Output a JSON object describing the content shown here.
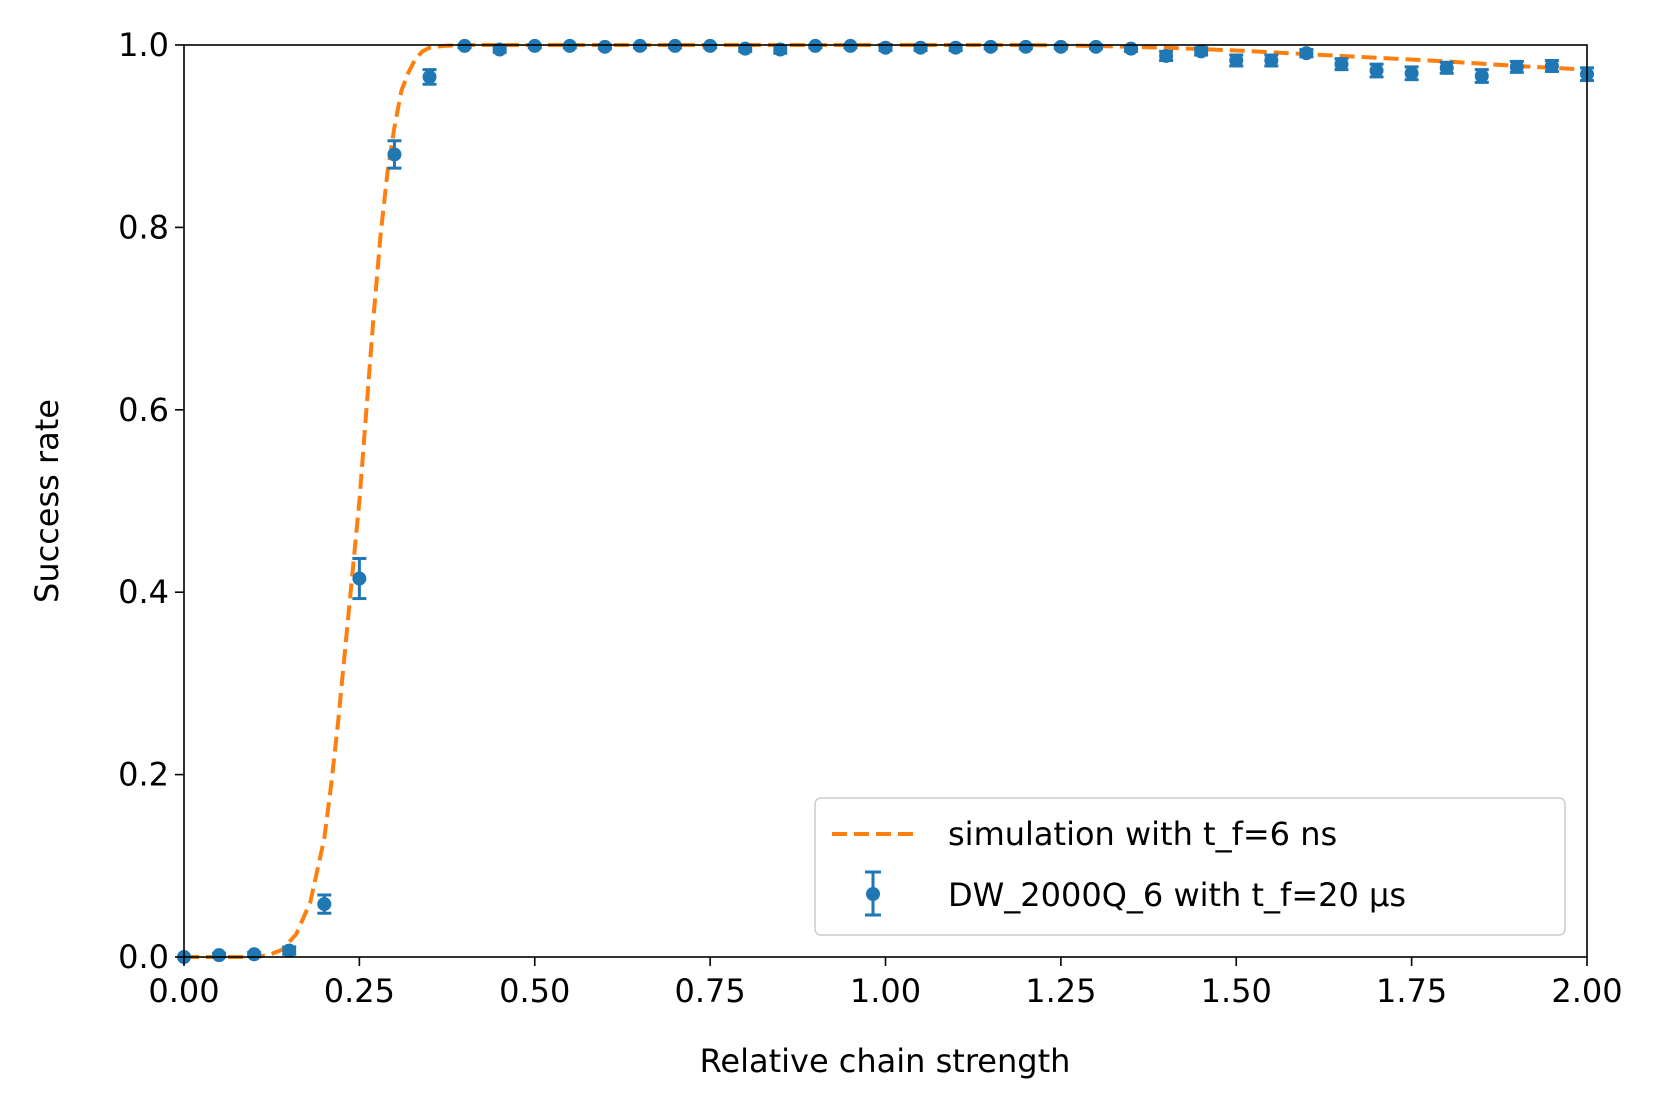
{
  "chart_data": {
    "type": "scatter",
    "title": "",
    "xlabel": "Relative chain strength",
    "ylabel": "Success rate",
    "xlim": [
      0.0,
      2.0
    ],
    "ylim": [
      0.0,
      1.0
    ],
    "grid": false,
    "legend_position": "lower-right",
    "x_ticks": [
      "0.00",
      "0.25",
      "0.50",
      "0.75",
      "1.00",
      "1.25",
      "1.50",
      "1.75",
      "2.00"
    ],
    "x_tick_values": [
      0.0,
      0.25,
      0.5,
      0.75,
      1.0,
      1.25,
      1.5,
      1.75,
      2.0
    ],
    "y_ticks": [
      "0.0",
      "0.2",
      "0.4",
      "0.6",
      "0.8",
      "1.0"
    ],
    "y_tick_values": [
      0.0,
      0.2,
      0.4,
      0.6,
      0.8,
      1.0
    ],
    "series": [
      {
        "name": "simulation with t_f=6 ns",
        "style": "dashed-line",
        "color": "#ff7f0e",
        "x": [
          0.0,
          0.02,
          0.04,
          0.06,
          0.08,
          0.1,
          0.12,
          0.14,
          0.16,
          0.18,
          0.2,
          0.21,
          0.22,
          0.23,
          0.24,
          0.25,
          0.26,
          0.27,
          0.28,
          0.29,
          0.3,
          0.31,
          0.32,
          0.33,
          0.34,
          0.35,
          0.37,
          0.4,
          0.45,
          0.5,
          0.6,
          0.7,
          0.8,
          0.9,
          1.0,
          1.1,
          1.2,
          1.3,
          1.4,
          1.5,
          1.6,
          1.7,
          1.8,
          1.9,
          2.0
        ],
        "y": [
          0.0,
          0.0,
          0.0,
          0.0,
          0.0,
          0.0,
          0.002,
          0.008,
          0.025,
          0.06,
          0.13,
          0.19,
          0.26,
          0.34,
          0.42,
          0.5,
          0.6,
          0.7,
          0.79,
          0.86,
          0.91,
          0.95,
          0.97,
          0.985,
          0.993,
          0.997,
          0.999,
          1.0,
          1.0,
          1.0,
          1.0,
          1.0,
          1.0,
          1.0,
          1.0,
          1.0,
          1.0,
          0.999,
          0.997,
          0.994,
          0.99,
          0.986,
          0.982,
          0.977,
          0.973
        ]
      },
      {
        "name": "DW_2000Q_6 with t_f=20 µs",
        "style": "errorbar-points",
        "color": "#1f77b4",
        "x": [
          0.0,
          0.05,
          0.1,
          0.15,
          0.2,
          0.25,
          0.3,
          0.35,
          0.4,
          0.45,
          0.5,
          0.55,
          0.6,
          0.65,
          0.7,
          0.75,
          0.8,
          0.85,
          0.9,
          0.95,
          1.0,
          1.05,
          1.1,
          1.15,
          1.2,
          1.25,
          1.3,
          1.35,
          1.4,
          1.45,
          1.5,
          1.55,
          1.6,
          1.65,
          1.7,
          1.75,
          1.8,
          1.85,
          1.9,
          1.95,
          2.0
        ],
        "y": [
          0.0,
          0.002,
          0.003,
          0.007,
          0.058,
          0.415,
          0.88,
          0.965,
          0.999,
          0.995,
          0.999,
          0.999,
          0.998,
          0.999,
          0.999,
          0.999,
          0.996,
          0.995,
          0.999,
          0.999,
          0.997,
          0.997,
          0.997,
          0.998,
          0.998,
          0.998,
          0.998,
          0.996,
          0.988,
          0.993,
          0.983,
          0.983,
          0.991,
          0.979,
          0.972,
          0.969,
          0.975,
          0.966,
          0.976,
          0.977,
          0.968
        ],
        "yerr": [
          0.001,
          0.002,
          0.002,
          0.004,
          0.01,
          0.022,
          0.015,
          0.008,
          0.002,
          0.003,
          0.002,
          0.002,
          0.002,
          0.002,
          0.002,
          0.002,
          0.003,
          0.004,
          0.002,
          0.002,
          0.003,
          0.003,
          0.003,
          0.002,
          0.002,
          0.002,
          0.002,
          0.003,
          0.005,
          0.004,
          0.006,
          0.006,
          0.004,
          0.006,
          0.007,
          0.007,
          0.006,
          0.007,
          0.006,
          0.006,
          0.007
        ]
      }
    ]
  }
}
